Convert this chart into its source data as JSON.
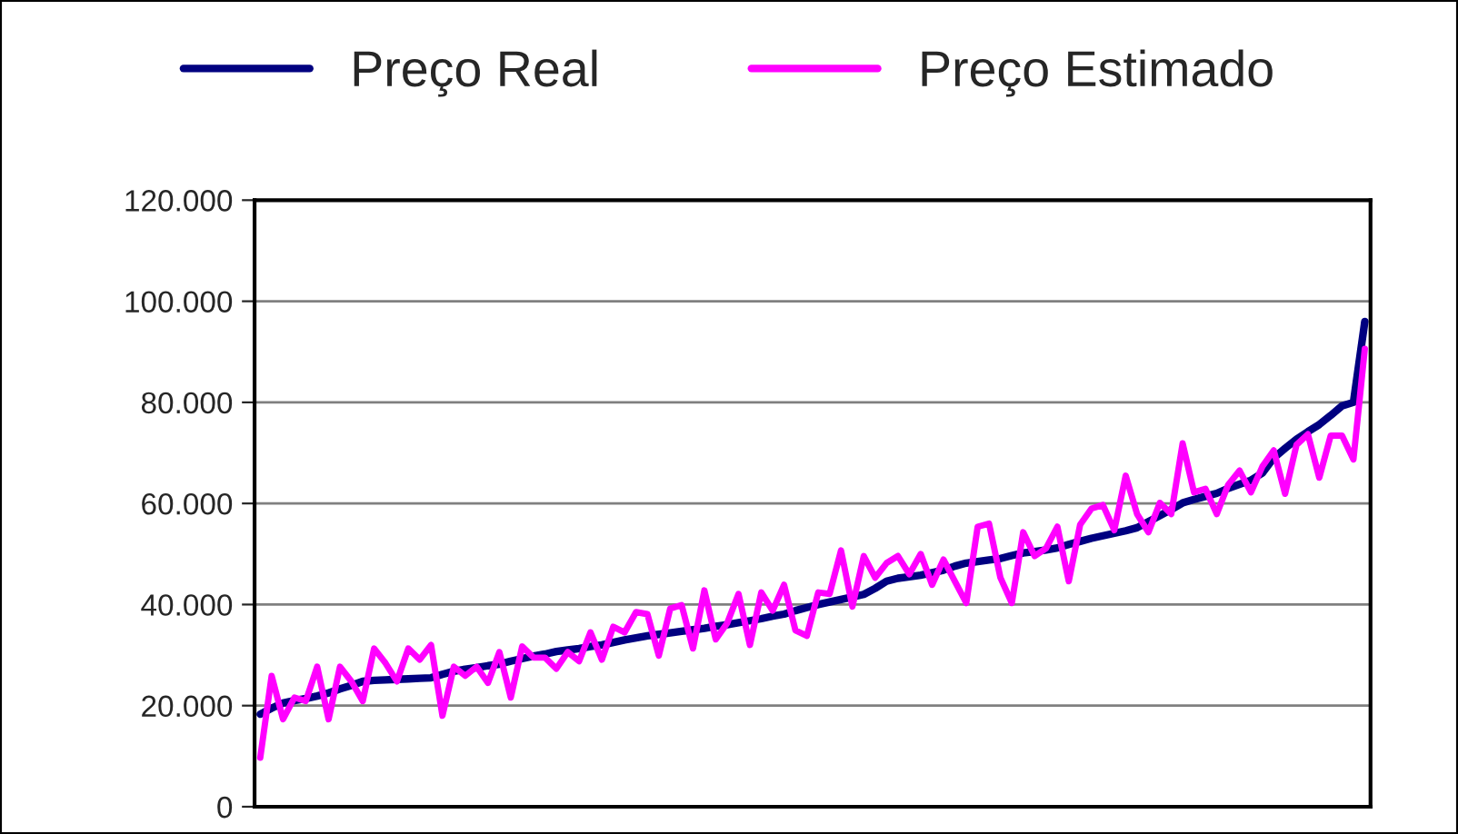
{
  "chart_data": {
    "type": "line",
    "categories": [
      null,
      null,
      null,
      null,
      null,
      null,
      null,
      null,
      null,
      null,
      null,
      null,
      null,
      null,
      null,
      null,
      null,
      null,
      null,
      null,
      null,
      null,
      null,
      null,
      null,
      null,
      null,
      null,
      null,
      null,
      null,
      null,
      null,
      null,
      null,
      null,
      null,
      null,
      null,
      null,
      null,
      null,
      null,
      null,
      null,
      null,
      null,
      null,
      null,
      null,
      null,
      null,
      null,
      null,
      null,
      null,
      null,
      null,
      null,
      null,
      null,
      null,
      null,
      null,
      null,
      null,
      null,
      null,
      null,
      null,
      null,
      null,
      null,
      null,
      null,
      null,
      null,
      null,
      null,
      null,
      null,
      null,
      null,
      null,
      null,
      null,
      null,
      null,
      null,
      null,
      null,
      null,
      null,
      null,
      null,
      null,
      null,
      null
    ],
    "series": [
      {
        "name": "Preço Real",
        "color": "#000080",
        "values": [
          18300,
          19500,
          20500,
          21000,
          21400,
          21900,
          22500,
          23300,
          24000,
          24800,
          25000,
          25100,
          25200,
          25300,
          25400,
          25500,
          26200,
          26800,
          27200,
          27500,
          27900,
          28200,
          28800,
          29300,
          29800,
          30200,
          30700,
          31000,
          31300,
          31700,
          32000,
          32500,
          33000,
          33400,
          33800,
          34100,
          34400,
          34700,
          35000,
          35300,
          35700,
          36000,
          36400,
          36800,
          37200,
          37700,
          38100,
          38800,
          39400,
          40000,
          40500,
          41000,
          41500,
          42000,
          43200,
          44600,
          45200,
          45500,
          45800,
          46300,
          46800,
          47600,
          48200,
          48500,
          48800,
          49100,
          49700,
          50200,
          50500,
          50800,
          51200,
          51900,
          52500,
          53100,
          53600,
          54100,
          54600,
          55200,
          56400,
          57600,
          58800,
          60100,
          60800,
          61400,
          62000,
          63000,
          63800,
          64600,
          66000,
          69000,
          70900,
          72700,
          74200,
          75600,
          77400,
          79300,
          80000,
          96000
        ]
      },
      {
        "name": "Preço Estimado",
        "color": "#ff00ff",
        "values": [
          9700,
          25900,
          17300,
          21600,
          20900,
          27700,
          17300,
          27700,
          24800,
          20900,
          31300,
          28400,
          24800,
          31300,
          29100,
          32000,
          18000,
          27700,
          25900,
          27700,
          24500,
          30600,
          21600,
          31700,
          29500,
          29500,
          27300,
          30600,
          28800,
          34500,
          29100,
          35600,
          34500,
          38500,
          38100,
          29900,
          39200,
          39900,
          31300,
          42800,
          33100,
          36300,
          42100,
          32000,
          42400,
          38800,
          43900,
          34900,
          33800,
          42400,
          42100,
          50700,
          39600,
          49600,
          45300,
          48200,
          49600,
          46000,
          50000,
          43900,
          48900,
          44600,
          40300,
          55400,
          56000,
          45300,
          40300,
          54300,
          49600,
          51100,
          55400,
          44600,
          55800,
          59000,
          59700,
          54700,
          65500,
          57900,
          54300,
          60100,
          57900,
          71900,
          62200,
          62900,
          57900,
          63700,
          66500,
          62200,
          67300,
          70500,
          61900,
          71600,
          73700,
          65100,
          73400,
          73400,
          68700,
          90600
        ]
      }
    ],
    "ylim": [
      0,
      120000
    ],
    "yticks": [
      {
        "value": 0,
        "label": "0"
      },
      {
        "value": 20000,
        "label": "20.000"
      },
      {
        "value": 40000,
        "label": "40.000"
      },
      {
        "value": 60000,
        "label": "60.000"
      },
      {
        "value": 80000,
        "label": "80.000"
      },
      {
        "value": 100000,
        "label": "100.000"
      },
      {
        "value": 120000,
        "label": "120.000"
      }
    ],
    "grid": "y",
    "legend": "top",
    "tick_labels": "y",
    "marker": "none",
    "line_style": "solid"
  }
}
